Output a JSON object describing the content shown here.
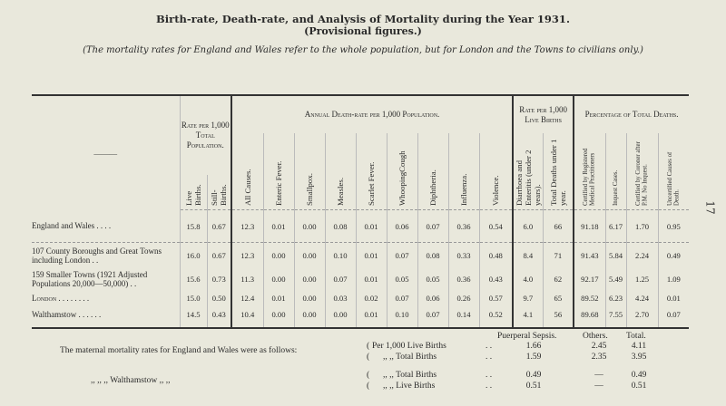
{
  "title": "Birth-rate, Death-rate, and Analysis of Mortality during the Year 1931.",
  "subtitle": "(Provisional figures.)",
  "note": "(The mortality rates for England and Wales refer to the whole population, but for London and the Towns to civilians only.)",
  "page_number": "17",
  "table": {
    "corner": "———",
    "groups": {
      "pop": "Rate per 1,000 Total Population.",
      "death": "Annual Death-rate per 1,000 Population.",
      "live": "Rate per 1,000 Live Births",
      "pct": "Percentage of Total Deaths."
    },
    "columns": [
      "Live Births.",
      "Still-Births.",
      "All Causes.",
      "Enteric Fever.",
      "Smallpox.",
      "Measles.",
      "Scarlet Fever.",
      "WhoopingCough",
      "Diphtheria.",
      "Influenza.",
      "Violence.",
      "Diarrhoea and Enteritis (under 2 years).",
      "Total Deaths under 1 year.",
      "Certified by Registered Medical Practitioners",
      "Inquest Cases.",
      "Certified by Coroner after P.M. No Inquest.",
      "Uncertified Causes of Death."
    ],
    "rows": [
      {
        "label": "England and Wales  . .  . .",
        "values": [
          "15.8",
          "0.67",
          "12.3",
          "0.01",
          "0.00",
          "0.08",
          "0.01",
          "0.06",
          "0.07",
          "0.36",
          "0.54",
          "6.0",
          "66",
          "91.18",
          "6.17",
          "1.70",
          "0.95"
        ]
      },
      {
        "label": "107 County Boroughs and Great Towns including London  . .",
        "values": [
          "16.0",
          "0.67",
          "12.3",
          "0.00",
          "0.00",
          "0.10",
          "0.01",
          "0.07",
          "0.08",
          "0.33",
          "0.48",
          "8.4",
          "71",
          "91.43",
          "5.84",
          "2.24",
          "0.49"
        ]
      },
      {
        "label": "159 Smaller Towns (1921 Adjusted Populations 20,000—50,000) . .",
        "values": [
          "15.6",
          "0.73",
          "11.3",
          "0.00",
          "0.00",
          "0.07",
          "0.01",
          "0.05",
          "0.05",
          "0.36",
          "0.43",
          "4.0",
          "62",
          "92.17",
          "5.49",
          "1.25",
          "1.09"
        ]
      },
      {
        "label": "London  . .  . .  . .  . .",
        "values": [
          "15.0",
          "0.50",
          "12.4",
          "0.01",
          "0.00",
          "0.03",
          "0.02",
          "0.07",
          "0.06",
          "0.26",
          "0.57",
          "9.7",
          "65",
          "89.52",
          "6.23",
          "4.24",
          "0.01"
        ]
      },
      {
        "label": "Walthamstow  . .  . .  . .",
        "values": [
          "14.5",
          "0.43",
          "10.4",
          "0.00",
          "0.00",
          "0.00",
          "0.01",
          "0.10",
          "0.07",
          "0.14",
          "0.52",
          "4.1",
          "56",
          "89.68",
          "7.55",
          "2.70",
          "0.07"
        ]
      }
    ]
  },
  "maternal": {
    "headers": [
      "Puerperal Sepsis.",
      "Others.",
      "Total."
    ],
    "ew_label": "The maternal mortality rates for England and Wales were as follows:",
    "w_label": ",,       ,,       ,,          Walthamstow          ,,     ,,",
    "rows": [
      {
        "basis": "Per 1,000 Live Births",
        "dots": ". .",
        "values": [
          "1.66",
          "2.45",
          "4.11"
        ]
      },
      {
        "basis": ",,   ,,  Total Births",
        "dots": ". .",
        "values": [
          "1.59",
          "2.35",
          "3.95"
        ]
      },
      {
        "basis": ",,   ,,  Total Births",
        "dots": ". .",
        "values": [
          "0.49",
          "—",
          "0.49"
        ]
      },
      {
        "basis": ",,   ,,  Live Births",
        "dots": ". .",
        "values": [
          "0.51",
          "—",
          "0.51"
        ]
      }
    ]
  }
}
